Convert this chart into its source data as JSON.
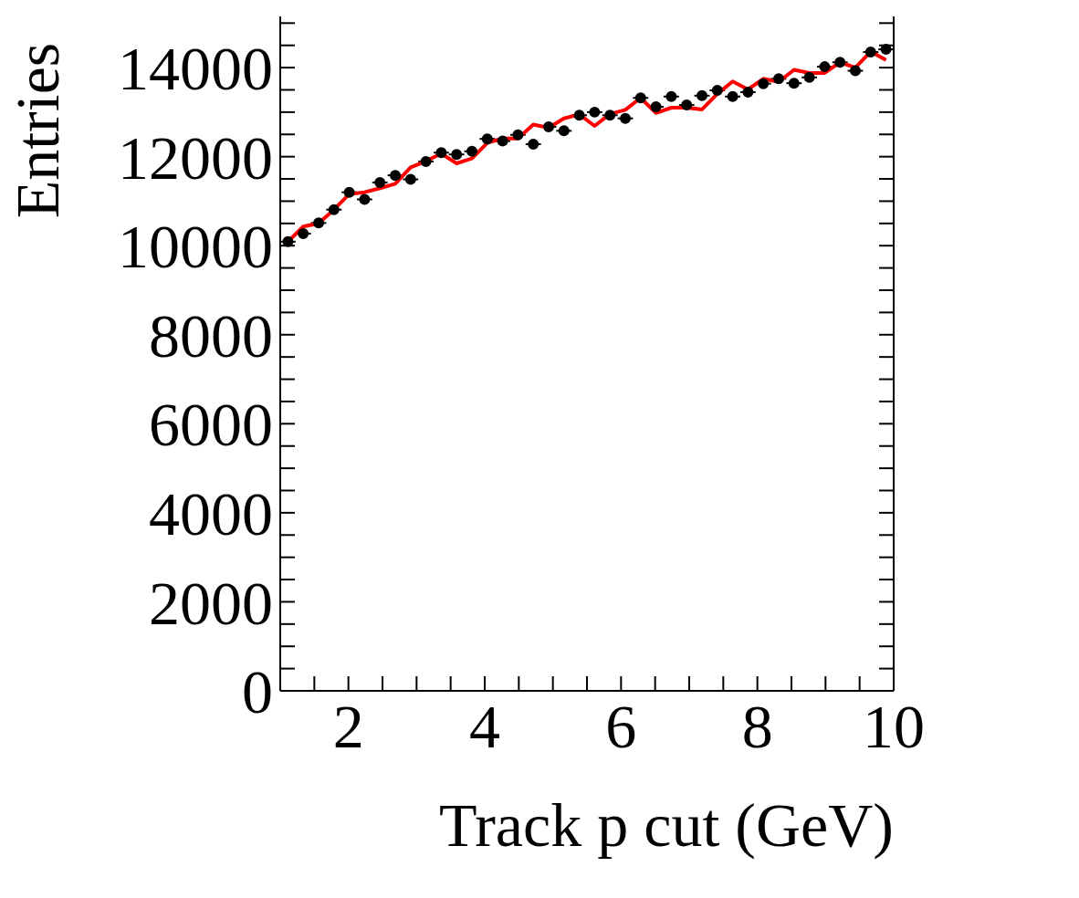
{
  "chart_data": {
    "type": "scatter",
    "xlabel": "Track p cut (GeV)",
    "ylabel": "Entries",
    "x": [
      1.1125,
      1.3375,
      1.5625,
      1.7875,
      2.0125,
      2.2375,
      2.4625,
      2.6875,
      2.9125,
      3.1375,
      3.3625,
      3.5875,
      3.8125,
      4.0375,
      4.2625,
      4.4875,
      4.7125,
      4.9375,
      5.1625,
      5.3875,
      5.6125,
      5.8375,
      6.0625,
      6.2875,
      6.5125,
      6.7375,
      6.9625,
      7.1875,
      7.4125,
      7.6375,
      7.8625,
      8.0875,
      8.3125,
      8.5375,
      8.7625,
      8.9875,
      9.2125,
      9.4375,
      9.6625,
      9.8875
    ],
    "series": [
      {
        "marker": "circle",
        "color": "#000000",
        "values": [
          10090,
          10270,
          10510,
          10810,
          11200,
          11040,
          11420,
          11580,
          11490,
          11890,
          12090,
          12050,
          12120,
          12400,
          12350,
          12490,
          12280,
          12670,
          12580,
          12930,
          13000,
          12930,
          12860,
          13320,
          13120,
          13350,
          13160,
          13370,
          13490,
          13350,
          13450,
          13640,
          13750,
          13650,
          13780,
          14020,
          14120,
          13930,
          14350,
          14410
        ],
        "xerrors": [
          0.1125,
          0.1125,
          0.1125,
          0.1125,
          0.1125,
          0.1125,
          0.1125,
          0.1125,
          0.1125,
          0.1125,
          0.1125,
          0.1125,
          0.1125,
          0.1125,
          0.1125,
          0.1125,
          0.1125,
          0.1125,
          0.1125,
          0.1125,
          0.1125,
          0.1125,
          0.1125,
          0.1125,
          0.1125,
          0.1125,
          0.1125,
          0.1125,
          0.1125,
          0.1125,
          0.1125,
          0.1125,
          0.1125,
          0.1125,
          0.1125,
          0.1125,
          0.1125,
          0.1125,
          0.1125,
          0.1125
        ]
      },
      {
        "type": "line",
        "marker": "none",
        "line_style": "solid",
        "color": "#ff0000",
        "values": [
          10090,
          10430,
          10500,
          10810,
          11160,
          11200,
          11290,
          11390,
          11760,
          11900,
          12070,
          11850,
          11960,
          12310,
          12410,
          12410,
          12720,
          12650,
          12860,
          12950,
          12690,
          12960,
          13050,
          13320,
          12980,
          13100,
          13100,
          13060,
          13410,
          13690,
          13510,
          13750,
          13680,
          13950,
          13880,
          13880,
          14120,
          14000,
          14360,
          14170
        ]
      }
    ],
    "xlim": [
      1,
      10
    ],
    "ylim": [
      0,
      15150
    ],
    "xticks": [
      {
        "value": 1.5,
        "label": null
      },
      2,
      {
        "value": 2.5,
        "label": null
      },
      {
        "value": 3,
        "label": null
      },
      {
        "value": 3.5,
        "label": null
      },
      4,
      {
        "value": 4.5,
        "label": null
      },
      {
        "value": 5,
        "label": null
      },
      {
        "value": 5.5,
        "label": null
      },
      6,
      {
        "value": 6.5,
        "label": null
      },
      {
        "value": 7,
        "label": null
      },
      {
        "value": 7.5,
        "label": null
      },
      8,
      {
        "value": 8.5,
        "label": null
      },
      {
        "value": 9,
        "label": null
      },
      {
        "value": 9.5,
        "label": null
      },
      10
    ],
    "yticks": [
      0,
      {
        "value": 500,
        "label": null
      },
      {
        "value": 1000,
        "label": null
      },
      {
        "value": 1500,
        "label": null
      },
      2000,
      {
        "value": 2500,
        "label": null
      },
      {
        "value": 3000,
        "label": null
      },
      {
        "value": 3500,
        "label": null
      },
      4000,
      {
        "value": 4500,
        "label": null
      },
      {
        "value": 5000,
        "label": null
      },
      {
        "value": 5500,
        "label": null
      },
      6000,
      {
        "value": 6500,
        "label": null
      },
      {
        "value": 7000,
        "label": null
      },
      {
        "value": 7500,
        "label": null
      },
      8000,
      {
        "value": 8500,
        "label": null
      },
      {
        "value": 9000,
        "label": null
      },
      {
        "value": 9500,
        "label": null
      },
      10000,
      {
        "value": 10500,
        "label": null
      },
      {
        "value": 11000,
        "label": null
      },
      {
        "value": 11500,
        "label": null
      },
      12000,
      {
        "value": 12500,
        "label": null
      },
      {
        "value": 13000,
        "label": null
      },
      {
        "value": 13500,
        "label": null
      },
      14000,
      {
        "value": 14500,
        "label": null
      },
      {
        "value": 15000,
        "label": null
      }
    ],
    "grid": false,
    "legend": false
  }
}
